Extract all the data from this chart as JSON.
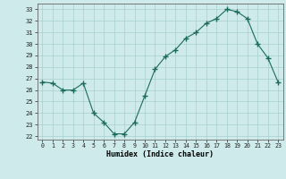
{
  "x": [
    0,
    1,
    2,
    3,
    4,
    5,
    6,
    7,
    8,
    9,
    10,
    11,
    12,
    13,
    14,
    15,
    16,
    17,
    18,
    19,
    20,
    21,
    22,
    23
  ],
  "y": [
    26.7,
    26.6,
    26.0,
    26.0,
    26.6,
    24.0,
    23.2,
    22.2,
    22.2,
    23.2,
    25.5,
    27.8,
    28.9,
    29.5,
    30.5,
    31.0,
    31.8,
    32.2,
    33.0,
    32.8,
    32.2,
    30.0,
    28.8,
    26.7
  ],
  "line_color": "#1a6b5a",
  "marker": "+",
  "marker_size": 4,
  "bg_color": "#ceeaea",
  "grid_color": "#a8cece",
  "xlabel": "Humidex (Indice chaleur)",
  "ylabel_ticks": [
    22,
    23,
    24,
    25,
    26,
    27,
    28,
    29,
    30,
    31,
    32,
    33
  ],
  "ylim": [
    21.7,
    33.5
  ],
  "xlim": [
    -0.5,
    23.5
  ],
  "xtick_labels": [
    "0",
    "1",
    "2",
    "3",
    "4",
    "5",
    "6",
    "7",
    "8",
    "9",
    "10",
    "11",
    "12",
    "13",
    "14",
    "15",
    "16",
    "17",
    "18",
    "19",
    "20",
    "21",
    "22",
    "23"
  ]
}
